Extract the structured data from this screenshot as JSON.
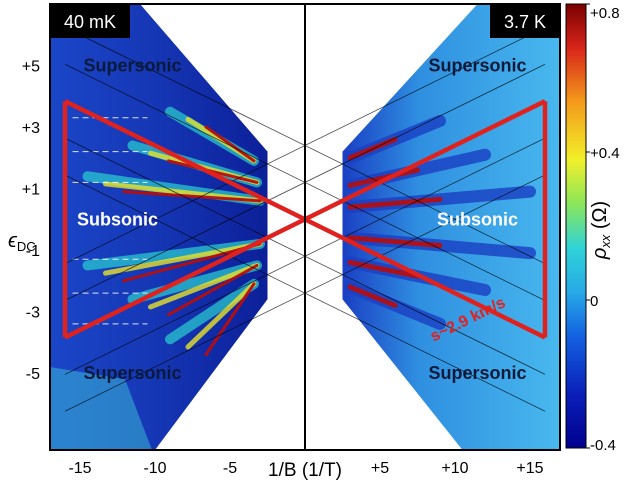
{
  "chart_data": {
    "type": "heatmap",
    "title": "",
    "xlabel": "1/B (1/T)",
    "ylabel": "ϵ",
    "ylabel_sub": "DC",
    "xlim": [
      -17,
      17
    ],
    "ylim": [
      -7.5,
      7.0
    ],
    "x_ticks": [
      {
        "value": -15,
        "label": "-15"
      },
      {
        "value": -10,
        "label": "-10"
      },
      {
        "value": -5,
        "label": "-5"
      },
      {
        "value": 5,
        "label": "+5"
      },
      {
        "value": 10,
        "label": "+10"
      },
      {
        "value": 15,
        "label": "+15"
      }
    ],
    "y_ticks": [
      {
        "value": 5,
        "label": "+5"
      },
      {
        "value": 3,
        "label": "+3"
      },
      {
        "value": 1,
        "label": "+1"
      },
      {
        "value": -1,
        "label": "-1"
      },
      {
        "value": -3,
        "label": "-3"
      },
      {
        "value": -5,
        "label": "-5"
      }
    ],
    "panels": [
      {
        "side": "left",
        "label": "40 mK",
        "x_range": [
          -17,
          -2.5
        ]
      },
      {
        "side": "right",
        "label": "3.7 K",
        "x_range": [
          2.5,
          17
        ]
      }
    ],
    "region_labels": [
      {
        "text": "Supersonic",
        "x": -11.5,
        "y": 5.0
      },
      {
        "text": "Subsonic",
        "x": -12.5,
        "y": 0.0
      },
      {
        "text": "Supersonic",
        "x": -11.5,
        "y": -5.0
      },
      {
        "text": "Supersonic",
        "x": 11.5,
        "y": 5.0
      },
      {
        "text": "Subsonic",
        "x": 11.5,
        "y": 0.0
      },
      {
        "text": "Supersonic",
        "x": 11.5,
        "y": -5.0
      }
    ],
    "velocity_annotation": {
      "text": "s~2.9 km/s",
      "x": 11.0,
      "y": -3.4
    },
    "threshold_lines": {
      "slope": 0.24,
      "x_extent": 16.0
    },
    "colorbar": {
      "label": "ρ",
      "label_sub": "xx",
      "unit": "(Ω)",
      "range": [
        -0.4,
        0.8
      ],
      "ticks": [
        {
          "value": 0.8,
          "label": "+0.8"
        },
        {
          "value": 0.4,
          "label": "+0.4"
        },
        {
          "value": 0,
          "label": "0"
        },
        {
          "value": -0.4,
          "label": "-0.4"
        }
      ]
    },
    "colors": {
      "threshold": "#e0221f",
      "background_low": "#0a1fa8",
      "mid": "#27a9e6",
      "high": "#9b0a0a"
    }
  }
}
